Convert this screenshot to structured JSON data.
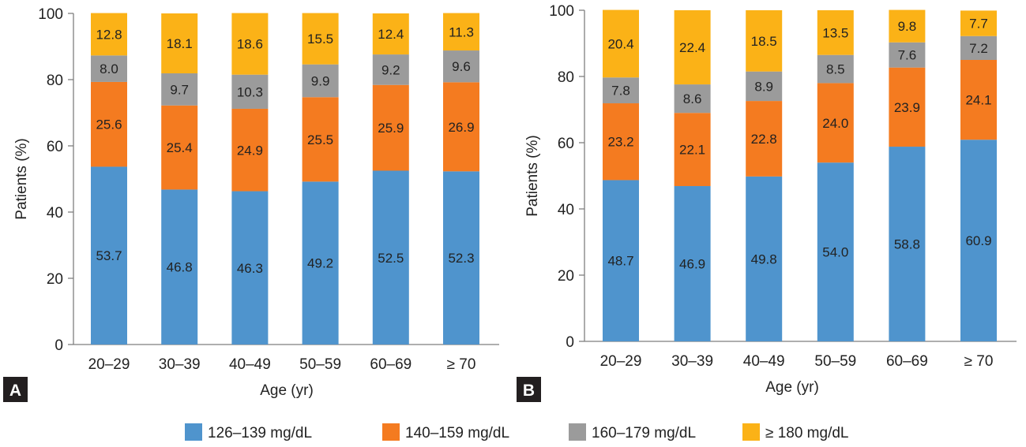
{
  "chart_data": [
    {
      "panel": "A",
      "type": "bar",
      "stacked": true,
      "categories": [
        "20–29",
        "30–39",
        "40–49",
        "50–59",
        "60–69",
        "≥ 70"
      ],
      "series": [
        {
          "name": "126–139 mg/dL",
          "color": "#4f94cd",
          "values": [
            53.7,
            46.8,
            46.3,
            49.2,
            52.5,
            52.3
          ]
        },
        {
          "name": "140–159 mg/dL",
          "color": "#f47b20",
          "values": [
            25.6,
            25.4,
            24.9,
            25.5,
            25.9,
            26.9
          ]
        },
        {
          "name": "160–179 mg/dL",
          "color": "#9b9b9b",
          "values": [
            8.0,
            9.7,
            10.3,
            9.9,
            9.2,
            9.6
          ]
        },
        {
          "name": "≥ 180 mg/dL",
          "color": "#fbb217",
          "values": [
            12.8,
            18.1,
            18.6,
            15.5,
            12.4,
            11.3
          ]
        }
      ],
      "xlabel": "Age (yr)",
      "ylabel": "Patients (%)",
      "ylim": [
        0,
        100
      ],
      "yticks": [
        0,
        20,
        40,
        60,
        80,
        100
      ]
    },
    {
      "panel": "B",
      "type": "bar",
      "stacked": true,
      "categories": [
        "20–29",
        "30–39",
        "40–49",
        "50–59",
        "60–69",
        "≥ 70"
      ],
      "series": [
        {
          "name": "126–139 mg/dL",
          "color": "#4f94cd",
          "values": [
            48.7,
            46.9,
            49.8,
            54.0,
            58.8,
            60.9
          ]
        },
        {
          "name": "140–159 mg/dL",
          "color": "#f47b20",
          "values": [
            23.2,
            22.1,
            22.8,
            24.0,
            23.9,
            24.1
          ]
        },
        {
          "name": "160–179 mg/dL",
          "color": "#9b9b9b",
          "values": [
            7.8,
            8.6,
            8.9,
            8.5,
            7.6,
            7.2
          ]
        },
        {
          "name": "≥ 180 mg/dL",
          "color": "#fbb217",
          "values": [
            20.4,
            22.4,
            18.5,
            13.5,
            9.8,
            7.7
          ]
        }
      ],
      "xlabel": "Age (yr)",
      "ylabel": "Patients (%)",
      "ylim": [
        0,
        100
      ],
      "yticks": [
        0,
        20,
        40,
        60,
        80,
        100
      ]
    }
  ],
  "legend": [
    {
      "label": "126–139 mg/dL",
      "color": "#4f94cd"
    },
    {
      "label": "140–159 mg/dL",
      "color": "#f47b20"
    },
    {
      "label": "160–179 mg/dL",
      "color": "#9b9b9b"
    },
    {
      "label": "≥ 180 mg/dL",
      "color": "#fbb217"
    }
  ],
  "colors": {
    "axis": "#7f7f7f",
    "panel_letter_bg": "#231f20"
  }
}
